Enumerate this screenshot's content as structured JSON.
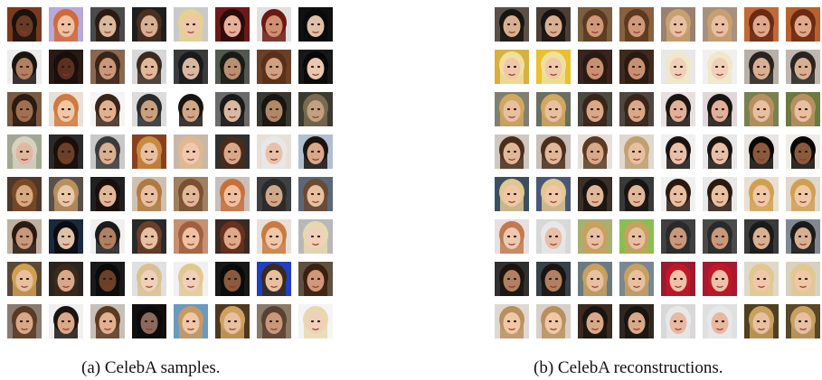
{
  "panels": [
    {
      "id": "a",
      "caption": "(a)  CelebA samples.",
      "rows": 8,
      "cols": 8,
      "tiles": [
        {
          "bg": "#7a3a22",
          "hair": "#1a120c",
          "skin": "#6b3a24"
        },
        {
          "bg": "#b7a9d8",
          "hair": "#d06a3a",
          "skin": "#f0c0a0"
        },
        {
          "bg": "#4a4a4a",
          "hair": "#2a1a12",
          "skin": "#d9b89c"
        },
        {
          "bg": "#1f1f1f",
          "hair": "#4a3020",
          "skin": "#d8b090"
        },
        {
          "bg": "#c9c9c9",
          "hair": "#e8d090",
          "skin": "#f0c8a8"
        },
        {
          "bg": "#6a1a1a",
          "hair": "#2a0a0a",
          "skin": "#e8b098"
        },
        {
          "bg": "#e0e0e0",
          "hair": "#6a1a10",
          "skin": "#d09070"
        },
        {
          "bg": "#101010",
          "hair": "#0a0a0a",
          "skin": "#e0c0a8"
        },
        {
          "bg": "#ececec",
          "hair": "#1a1410",
          "skin": "#b08060"
        },
        {
          "bg": "#2a1a14",
          "hair": "#1a0e0a",
          "skin": "#5a3020"
        },
        {
          "bg": "#8a6850",
          "hair": "#3a2418",
          "skin": "#c89878"
        },
        {
          "bg": "#d8d8d8",
          "hair": "#3a2a20",
          "skin": "#e0b898"
        },
        {
          "bg": "#3a3a3a",
          "hair": "#1a1a1a",
          "skin": "#d8b8a0"
        },
        {
          "bg": "#505850",
          "hair": "#1a1a14",
          "skin": "#b89070"
        },
        {
          "bg": "#6a4028",
          "hair": "#5a2e18",
          "skin": "#d0a080"
        },
        {
          "bg": "#181818",
          "hair": "#0a0806",
          "skin": "#e8c8b0"
        },
        {
          "bg": "#7a5a40",
          "hair": "#2a1a10",
          "skin": "#a07050"
        },
        {
          "bg": "#e8e0d8",
          "hair": "#d07a40",
          "skin": "#f0c8a8"
        },
        {
          "bg": "#f4f4f4",
          "hair": "#3a2418",
          "skin": "#e0b090"
        },
        {
          "bg": "#dcdcdc",
          "hair": "#2a2a2a",
          "skin": "#c8a080"
        },
        {
          "bg": "#ffffff",
          "hair": "#1a1410",
          "skin": "#d0a888"
        },
        {
          "bg": "#6a6a6a",
          "hair": "#1a1a1a",
          "skin": "#d8b8a0"
        },
        {
          "bg": "#383830",
          "hair": "#1a1410",
          "skin": "#b08868"
        },
        {
          "bg": "#3a3a30",
          "hair": "#7a6a50",
          "skin": "#c0a080"
        },
        {
          "bg": "#a0a890",
          "hair": "#d8d0c0",
          "skin": "#e0b8a0"
        },
        {
          "bg": "#2a2a2a",
          "hair": "#1a0e08",
          "skin": "#6a4028"
        },
        {
          "bg": "#c8c8c8",
          "hair": "#3a3a3a",
          "skin": "#d8b090"
        },
        {
          "bg": "#8a4020",
          "hair": "#c88a40",
          "skin": "#e8c0a0"
        },
        {
          "bg": "#c8b8a8",
          "hair": "#e0b890",
          "skin": "#f0c8b0"
        },
        {
          "bg": "#303030",
          "hair": "#4a2a1a",
          "skin": "#d8a888"
        },
        {
          "bg": "#e8e0d8",
          "hair": "#e8e8e8",
          "skin": "#e8c0a8"
        },
        {
          "bg": "#b0c0d0",
          "hair": "#1a1410",
          "skin": "#d8a888"
        },
        {
          "bg": "#503828",
          "hair": "#7a4a28",
          "skin": "#d8a880"
        },
        {
          "bg": "#5a5048",
          "hair": "#b89060",
          "skin": "#e8c8a8"
        },
        {
          "bg": "#202020",
          "hair": "#1a0e08",
          "skin": "#e0b898"
        },
        {
          "bg": "#d0c0b0",
          "hair": "#b07a40",
          "skin": "#e8c0a0"
        },
        {
          "bg": "#a08060",
          "hair": "#7a5030",
          "skin": "#e0b898"
        },
        {
          "bg": "#c8c0b8",
          "hair": "#c8703a",
          "skin": "#f0c0a0"
        },
        {
          "bg": "#404040",
          "hair": "#2a2a2a",
          "skin": "#d0a888"
        },
        {
          "bg": "#5a6878",
          "hair": "#6a4a30",
          "skin": "#e8c0a0"
        },
        {
          "bg": "#c0b0a0",
          "hair": "#2a1a10",
          "skin": "#c89878"
        },
        {
          "bg": "#1a2a3a",
          "hair": "#0a0a10",
          "skin": "#e0c0a8"
        },
        {
          "bg": "#f0f0f0",
          "hair": "#1a1a1a",
          "skin": "#b08060"
        },
        {
          "bg": "#2a2a2a",
          "hair": "#6a4028",
          "skin": "#e8c0a0"
        },
        {
          "bg": "#c89070",
          "hair": "#a06040",
          "skin": "#f0c0a0"
        },
        {
          "bg": "#3a2a24",
          "hair": "#6a3020",
          "skin": "#e0a888"
        },
        {
          "bg": "#e8e0d8",
          "hair": "#c87a40",
          "skin": "#f0c8a8"
        },
        {
          "bg": "#b8b8b8",
          "hair": "#e8d8b0",
          "skin": "#f0d0b8"
        },
        {
          "bg": "#5a4838",
          "hair": "#d0a050",
          "skin": "#e8c0a0"
        },
        {
          "bg": "#2a2420",
          "hair": "#3a2a1a",
          "skin": "#d8a888"
        },
        {
          "bg": "#1a1a1a",
          "hair": "#0a0a0a",
          "skin": "#6a4028"
        },
        {
          "bg": "#e0e0e0",
          "hair": "#d8c090",
          "skin": "#f0d0b8"
        },
        {
          "bg": "#f0f0f0",
          "hair": "#e0c890",
          "skin": "#f0d0b8"
        },
        {
          "bg": "#181818",
          "hair": "#0a0a0a",
          "skin": "#8a5a3a"
        },
        {
          "bg": "#2040c0",
          "hair": "#3a2a1a",
          "skin": "#e8c0a0"
        },
        {
          "bg": "#605040",
          "hair": "#3a2010",
          "skin": "#d09878"
        },
        {
          "bg": "#8a7a70",
          "hair": "#5a3a24",
          "skin": "#d8a888"
        },
        {
          "bg": "#f0f0f0",
          "hair": "#1a1410",
          "skin": "#d8a888"
        },
        {
          "bg": "#c8c0b8",
          "hair": "#5a3a20",
          "skin": "#e0b090"
        },
        {
          "bg": "#101010",
          "hair": "#0a0a0a",
          "skin": "#8a6a5a"
        },
        {
          "bg": "#6a9ac0",
          "hair": "#c89a60",
          "skin": "#f0c8a8"
        },
        {
          "bg": "#503820",
          "hair": "#d0a060",
          "skin": "#e8c0a0"
        },
        {
          "bg": "#8a7a6a",
          "hair": "#5a4030",
          "skin": "#c89878"
        },
        {
          "bg": "#f4f4f4",
          "hair": "#e8d8b0",
          "skin": "#f0d0b8"
        }
      ]
    },
    {
      "id": "b",
      "caption": "(b)  CelebA reconstructions.",
      "rows": 8,
      "cols": 8,
      "tiles": [
        {
          "bg": "#5a5048",
          "hair": "#1a1410",
          "skin": "#d8b090"
        },
        {
          "bg": "#4a4038",
          "hair": "#1a1410",
          "skin": "#d8b090"
        },
        {
          "bg": "#7a6040",
          "hair": "#5a3a20",
          "skin": "#d09878"
        },
        {
          "bg": "#8a6040",
          "hair": "#5a3a20",
          "skin": "#d09878"
        },
        {
          "bg": "#9a8070",
          "hair": "#c8a070",
          "skin": "#e8c0a0"
        },
        {
          "bg": "#a89080",
          "hair": "#c8a070",
          "skin": "#e8c0a0"
        },
        {
          "bg": "#c06a3a",
          "hair": "#6a2a14",
          "skin": "#e0a888"
        },
        {
          "bg": "#b86030",
          "hair": "#6a2a14",
          "skin": "#e0a888"
        },
        {
          "bg": "#d8b040",
          "hair": "#f0e0a0",
          "skin": "#f0c8a8"
        },
        {
          "bg": "#e8c030",
          "hair": "#f0e0a0",
          "skin": "#f0c8a8"
        },
        {
          "bg": "#3a2420",
          "hair": "#2a1a10",
          "skin": "#c89070"
        },
        {
          "bg": "#402a20",
          "hair": "#2a1a10",
          "skin": "#c89070"
        },
        {
          "bg": "#e8e8e8",
          "hair": "#f0e8c8",
          "skin": "#f0d0b8"
        },
        {
          "bg": "#f0f0f0",
          "hair": "#f0e8c8",
          "skin": "#f0d0b8"
        },
        {
          "bg": "#b8b0a8",
          "hair": "#2a2420",
          "skin": "#d8b090"
        },
        {
          "bg": "#c0b8b0",
          "hair": "#2a2420",
          "skin": "#d8b090"
        },
        {
          "bg": "#808070",
          "hair": "#d0a860",
          "skin": "#e8c0a0"
        },
        {
          "bg": "#6a7060",
          "hair": "#d0a860",
          "skin": "#e8c0a0"
        },
        {
          "bg": "#4a4a40",
          "hair": "#3a2418",
          "skin": "#d8a888"
        },
        {
          "bg": "#504840",
          "hair": "#3a2418",
          "skin": "#d8a888"
        },
        {
          "bg": "#e8e0e0",
          "hair": "#1a1410",
          "skin": "#e0b098"
        },
        {
          "bg": "#e0d8d8",
          "hair": "#1a1410",
          "skin": "#e0b098"
        },
        {
          "bg": "#7a8050",
          "hair": "#b89060",
          "skin": "#e8c0a0"
        },
        {
          "bg": "#6a7a40",
          "hair": "#b89060",
          "skin": "#e8c0a0"
        },
        {
          "bg": "#d0c8c0",
          "hair": "#4a2e1c",
          "skin": "#e0b898"
        },
        {
          "bg": "#c8c0b8",
          "hair": "#4a2e1c",
          "skin": "#e0b898"
        },
        {
          "bg": "#e8e0d8",
          "hair": "#5a3a24",
          "skin": "#d8a888"
        },
        {
          "bg": "#e0d8d0",
          "hair": "#c0a070",
          "skin": "#e8c0a0"
        },
        {
          "bg": "#f0f0f0",
          "hair": "#1a1410",
          "skin": "#e8c0a8"
        },
        {
          "bg": "#e8e8e8",
          "hair": "#1a1410",
          "skin": "#e8c0a8"
        },
        {
          "bg": "#e8e4e0",
          "hair": "#0a0806",
          "skin": "#8a5a3a"
        },
        {
          "bg": "#f0ece8",
          "hair": "#0a0806",
          "skin": "#8a5a3a"
        },
        {
          "bg": "#3a5060",
          "hair": "#e0c890",
          "skin": "#f0c8a8"
        },
        {
          "bg": "#4a5878",
          "hair": "#e0c890",
          "skin": "#f0c8a8"
        },
        {
          "bg": "#3a3028",
          "hair": "#1a1410",
          "skin": "#e0b898"
        },
        {
          "bg": "#3a3a3a",
          "hair": "#1a1410",
          "skin": "#e0b898"
        },
        {
          "bg": "#f0f0f0",
          "hair": "#2a1a10",
          "skin": "#e8c0a0"
        },
        {
          "bg": "#e8e8e8",
          "hair": "#2a1a10",
          "skin": "#e8c0a0"
        },
        {
          "bg": "#e8e0d0",
          "hair": "#d0a050",
          "skin": "#f0c8a8"
        },
        {
          "bg": "#e0d8c8",
          "hair": "#d0a050",
          "skin": "#f0c8a8"
        },
        {
          "bg": "#e8e0e0",
          "hair": "#c07a50",
          "skin": "#f0c8b0"
        },
        {
          "bg": "#d8d8d8",
          "hair": "#e8e8e8",
          "skin": "#e8c0a8"
        },
        {
          "bg": "#a8b070",
          "hair": "#c8a060",
          "skin": "#e8c0a0"
        },
        {
          "bg": "#88c050",
          "hair": "#c8a060",
          "skin": "#e8c0a0"
        },
        {
          "bg": "#404040",
          "hair": "#2a2a2a",
          "skin": "#c89878"
        },
        {
          "bg": "#4a4a4a",
          "hair": "#2a2a2a",
          "skin": "#c89878"
        },
        {
          "bg": "#3a3a3a",
          "hair": "#1a1a1a",
          "skin": "#d8b090"
        },
        {
          "bg": "#808890",
          "hair": "#1a1a1a",
          "skin": "#d8b090"
        },
        {
          "bg": "#303030",
          "hair": "#1a1410",
          "skin": "#b08060"
        },
        {
          "bg": "#384048",
          "hair": "#1a1410",
          "skin": "#b08060"
        },
        {
          "bg": "#6a7a80",
          "hair": "#c8a060",
          "skin": "#e8c0a0"
        },
        {
          "bg": "#7a8890",
          "hair": "#c8a060",
          "skin": "#e8c0a0"
        },
        {
          "bg": "#a01830",
          "hair": "#c01828",
          "skin": "#f0c0a8"
        },
        {
          "bg": "#a81830",
          "hair": "#c01828",
          "skin": "#f0c0a8"
        },
        {
          "bg": "#e0d8c8",
          "hair": "#e0c890",
          "skin": "#f0c8a8"
        },
        {
          "bg": "#d8d0c0",
          "hair": "#e0c890",
          "skin": "#f0c8a8"
        },
        {
          "bg": "#e0d8d0",
          "hair": "#b89060",
          "skin": "#f0c8a8"
        },
        {
          "bg": "#d8d0c8",
          "hair": "#b89060",
          "skin": "#f0c8a8"
        },
        {
          "bg": "#3a2a20",
          "hair": "#1a1410",
          "skin": "#d8a888"
        },
        {
          "bg": "#302820",
          "hair": "#1a1410",
          "skin": "#d8a888"
        },
        {
          "bg": "#d8d8d8",
          "hair": "#e8e8e8",
          "skin": "#e8b8a0"
        },
        {
          "bg": "#e0e0e0",
          "hair": "#e8e8e8",
          "skin": "#e8b8a0"
        },
        {
          "bg": "#504020",
          "hair": "#c8a060",
          "skin": "#e8c0a0"
        },
        {
          "bg": "#584828",
          "hair": "#c8a060",
          "skin": "#e8c0a0"
        }
      ]
    }
  ]
}
